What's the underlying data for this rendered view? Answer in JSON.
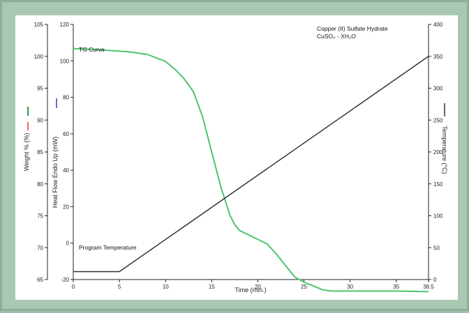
{
  "chart_data": {
    "type": "line",
    "title": "Copper (II) Sulfate Hydrate",
    "subtitle": "CuSO₄ - XH₂O",
    "xlabel": "Time (min.)",
    "xlim": [
      0,
      38.5
    ],
    "x_ticks": [
      "0",
      "5",
      "10",
      "15",
      "20",
      "25",
      "30",
      "35",
      "38.5"
    ],
    "axes": {
      "weight": {
        "label": "Weight % (%)",
        "range": [
          65,
          105
        ],
        "ticks": [
          65,
          70,
          75,
          80,
          85,
          90,
          95,
          100,
          105
        ],
        "color": "#2aa04a"
      },
      "heat_flow": {
        "label": "Heat Flow Endo Up (mW)",
        "range": [
          -20,
          120
        ],
        "ticks": [
          -20,
          0,
          20,
          40,
          60,
          80,
          100,
          120
        ],
        "color": "#5555aa"
      },
      "temperature": {
        "label": "Temperature (°C)",
        "range": [
          0,
          400
        ],
        "ticks": [
          0,
          50,
          100,
          150,
          200,
          250,
          300,
          350,
          400
        ],
        "color": "#222222"
      }
    },
    "legend_marks": {
      "weight_color": "#2aa04a",
      "heat_flow_color": "#6f70b8",
      "red_color": "#e0705a",
      "temperature_color": "#333333"
    },
    "grid": false,
    "series": [
      {
        "name": "TG Curve",
        "axis": "weight",
        "color": "#4cc46e",
        "x": [
          0,
          2,
          4,
          6,
          8,
          10,
          11,
          12,
          13,
          14,
          15,
          16,
          17,
          17.5,
          18,
          19,
          20,
          21,
          22,
          23,
          24,
          25,
          26,
          27,
          28,
          30,
          35,
          38.5
        ],
        "y": [
          101.2,
          101.1,
          100.9,
          100.7,
          100.3,
          99.2,
          98.0,
          96.5,
          94.5,
          90.6,
          85.0,
          79.5,
          75.0,
          73.6,
          72.7,
          72.0,
          71.3,
          70.6,
          69.0,
          67.2,
          65.4,
          64.6,
          64.0,
          63.4,
          63.2,
          63.2,
          63.2,
          63.1
        ]
      },
      {
        "name": "Program Temperature",
        "axis": "temperature",
        "color": "#333333",
        "x": [
          0,
          5,
          38.5
        ],
        "y": [
          12.5,
          12.5,
          350
        ]
      }
    ],
    "annotations": [
      {
        "text": "TG Curve",
        "series": "TG Curve"
      },
      {
        "text": "Program Temperature",
        "series": "Program Temperature"
      }
    ]
  }
}
